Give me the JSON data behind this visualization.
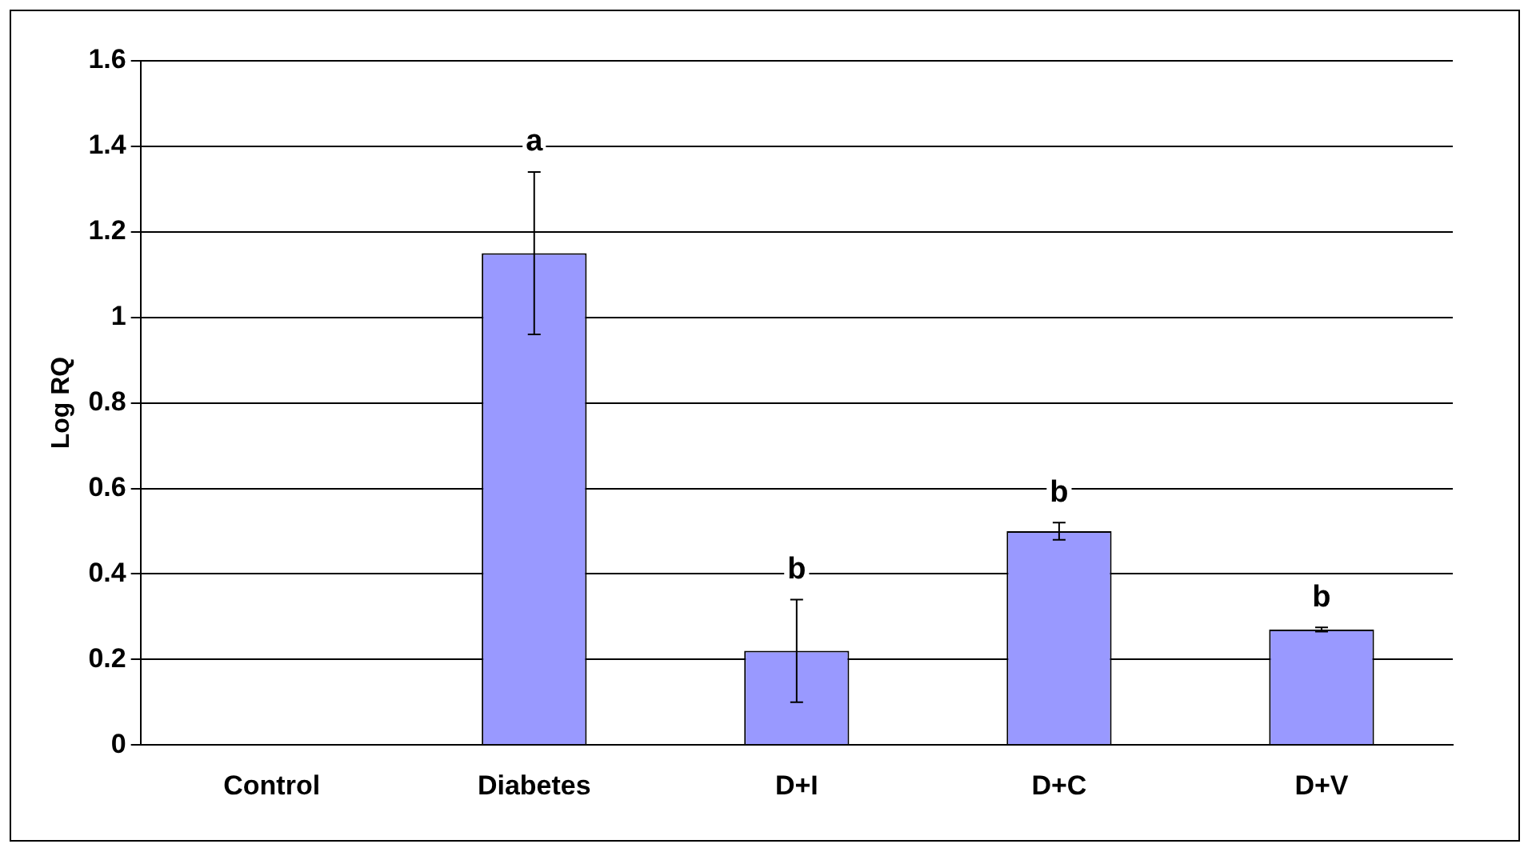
{
  "chart_data": {
    "type": "bar",
    "ylabel": "Log RQ",
    "categories": [
      "Control",
      "Diabetes",
      "D+I",
      "D+C",
      "D+V"
    ],
    "values": [
      0,
      1.15,
      0.22,
      0.5,
      0.27
    ],
    "errors": [
      null,
      0.19,
      0.12,
      0.02,
      0.005
    ],
    "color": "#9999ff",
    "ylim": [
      0,
      1.6
    ],
    "yticks": [
      0,
      {
        "value": 0.2,
        "label": "0.2"
      },
      {
        "value": 0.4,
        "label": "0.4"
      },
      {
        "value": 0.6,
        "label": "0.6"
      },
      {
        "value": 0.8,
        "label": "0.8"
      },
      1,
      {
        "value": 1.2,
        "label": "1.2"
      },
      {
        "value": 1.4,
        "label": "1.4"
      },
      {
        "value": 1.6,
        "label": "1.6"
      }
    ],
    "grid": "y",
    "legend": false,
    "annotations": [
      {
        "text": "a",
        "x": "Diabetes",
        "y": 1.34
      },
      {
        "text": "b",
        "x": "D+I",
        "y": 0.34
      },
      {
        "text": "b",
        "x": "D+C",
        "y": 0.52
      },
      {
        "text": "b",
        "x": "D+V",
        "y": 0.275
      }
    ]
  }
}
